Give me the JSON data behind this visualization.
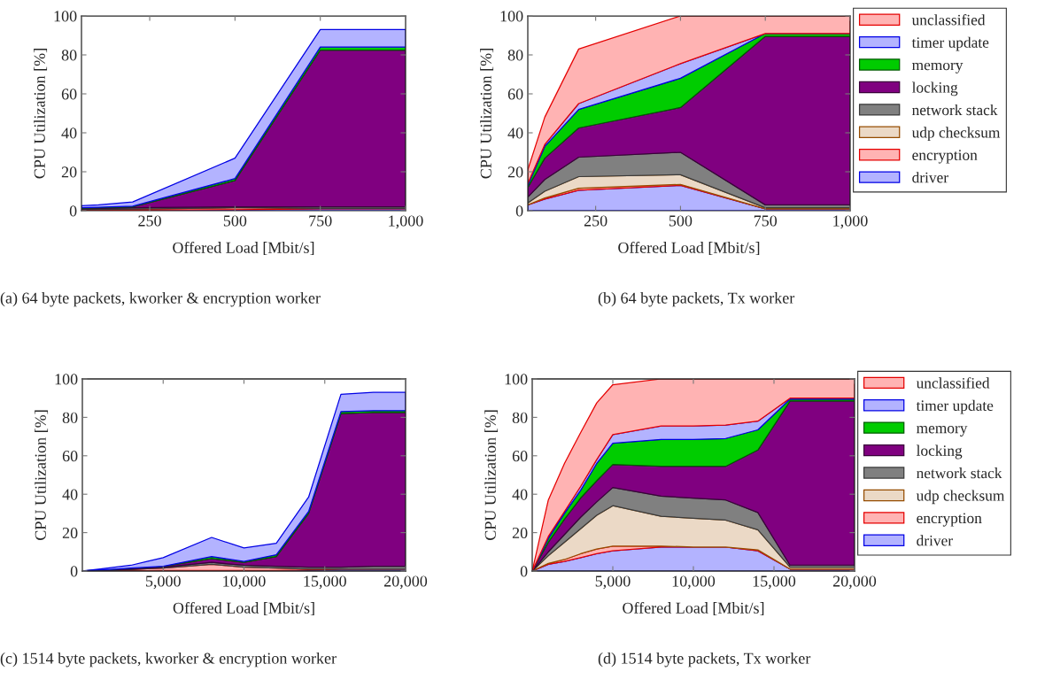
{
  "chart_data": [
    {
      "type": "area",
      "stacked": true,
      "legend": false,
      "xlabel": "Offered Load [Mbit/s]",
      "ylabel": "CPU Utilization [%]",
      "annotations": [
        "(a) 64 byte packets, kworker & encryption worker"
      ],
      "x": [
        50,
        100,
        200,
        500,
        750,
        1000
      ],
      "xlim": [
        50,
        1000
      ],
      "ylim": [
        0,
        100
      ],
      "xticks": [
        250,
        500,
        750,
        {
          "value": 1000,
          "label": "1,000"
        }
      ],
      "yticks": [
        0,
        20,
        40,
        60,
        80,
        100
      ],
      "series": [
        {
          "color": "#b3b3ff",
          "values": [
            0.3,
            0.3,
            0.3,
            0.5,
            1,
            1
          ]
        },
        {
          "color": "#ffb3b3",
          "values": [
            0.2,
            0.3,
            0.5,
            1,
            0.2,
            0.2
          ]
        },
        {
          "color": "#808080",
          "values": [
            0.5,
            0.6,
            0.7,
            0.5,
            0.8,
            0.8
          ]
        },
        {
          "color": "#800080",
          "values": [
            0.3,
            0.3,
            0.5,
            13.5,
            80.5,
            80.5
          ]
        },
        {
          "color": "#00cc00",
          "values": [
            0.2,
            0.3,
            0.3,
            1,
            1.5,
            1.5
          ]
        },
        {
          "color": "#b3b3ff",
          "values": [
            1,
            1.2,
            2.2,
            10.5,
            9,
            9
          ]
        }
      ]
    },
    {
      "type": "area",
      "stacked": true,
      "legend": "right",
      "xlabel": "Offered Load [Mbit/s]",
      "ylabel": "CPU Utilization [%]",
      "annotations": [
        "(b) 64 byte packets, Tx worker"
      ],
      "x": [
        50,
        100,
        200,
        500,
        750,
        1000
      ],
      "xlim": [
        50,
        1000
      ],
      "ylim": [
        0,
        100
      ],
      "xticks": [
        250,
        500,
        750,
        {
          "value": 1000,
          "label": "1,000"
        }
      ],
      "yticks": [
        0,
        20,
        40,
        60,
        80,
        100
      ],
      "series": [
        {
          "name": "driver",
          "color": "#b3b3ff",
          "values": [
            3,
            6,
            10.5,
            13,
            1,
            1
          ]
        },
        {
          "name": "encryption",
          "color": "#ffb3b3",
          "values": [
            0,
            0.5,
            1,
            0.5,
            0,
            0
          ]
        },
        {
          "name": "udp checksum",
          "color": "#ebd9c6",
          "values": [
            1,
            3.5,
            6,
            5,
            0.5,
            0.5
          ]
        },
        {
          "name": "network stack",
          "color": "#808080",
          "values": [
            3,
            6,
            10,
            11.5,
            1.5,
            1.5
          ]
        },
        {
          "name": "locking",
          "color": "#800080",
          "values": [
            5,
            11,
            15,
            23,
            86.5,
            86.5
          ]
        },
        {
          "name": "memory",
          "color": "#00cc00",
          "values": [
            1,
            6,
            9.5,
            15,
            1.5,
            1.5
          ]
        },
        {
          "name": "timer update",
          "color": "#b3b3ff",
          "values": [
            1,
            1,
            3,
            7.5,
            0,
            0
          ]
        },
        {
          "name": "unclassified",
          "color": "#ffb3b3",
          "values": [
            7,
            14,
            28,
            24.5,
            9,
            9
          ]
        }
      ]
    },
    {
      "type": "area",
      "stacked": true,
      "legend": false,
      "xlabel": "Offered Load [Mbit/s]",
      "ylabel": "CPU Utilization [%]",
      "annotations": [
        "(c) 1514 byte packets, kworker & encryption worker"
      ],
      "x": [
        0,
        1000,
        2000,
        3000,
        4000,
        5000,
        8000,
        10000,
        12000,
        14000,
        16000,
        18000,
        20000
      ],
      "xlim": [
        0,
        20000
      ],
      "ylim": [
        0,
        100
      ],
      "xticks": [
        {
          "value": 5000,
          "label": "5,000"
        },
        {
          "value": 10000,
          "label": "10,000"
        },
        {
          "value": 15000,
          "label": "15,000"
        },
        {
          "value": 20000,
          "label": "20,000"
        }
      ],
      "yticks": [
        0,
        20,
        40,
        60,
        80,
        100
      ],
      "series": [
        {
          "color": "#b3b3ff",
          "values": [
            0,
            0.1,
            0.1,
            0.2,
            0.2,
            0.3,
            0.3,
            0.3,
            0.3,
            0.5,
            1,
            1,
            1
          ]
        },
        {
          "color": "#ffb3b3",
          "values": [
            0,
            0.1,
            0.3,
            0.6,
            1,
            1.2,
            3.2,
            1.7,
            1.2,
            0.5,
            0,
            0,
            0
          ]
        },
        {
          "color": "#808080",
          "values": [
            0,
            0.1,
            0.1,
            0.2,
            0.3,
            0.5,
            1,
            1,
            1,
            1,
            1,
            1.5,
            1.5
          ]
        },
        {
          "color": "#800080",
          "values": [
            0,
            0.2,
            0.5,
            0.5,
            0.5,
            0.5,
            2,
            1.5,
            5,
            28,
            80,
            80,
            80
          ]
        },
        {
          "color": "#00cc00",
          "values": [
            0,
            0,
            0,
            0,
            0,
            0,
            1,
            0.5,
            1,
            1,
            1,
            1,
            1
          ]
        },
        {
          "color": "#b3b3ff",
          "values": [
            0,
            0.5,
            1,
            1.5,
            3,
            4.5,
            10,
            7,
            6,
            7.5,
            9,
            9.5,
            9.5
          ]
        }
      ]
    },
    {
      "type": "area",
      "stacked": true,
      "legend": "right",
      "xlabel": "Offered Load [Mbit/s]",
      "ylabel": "CPU Utilization [%]",
      "annotations": [
        "(d) 1514 byte packets, Tx worker"
      ],
      "x": [
        0,
        1000,
        2000,
        3000,
        4000,
        5000,
        8000,
        10000,
        12000,
        14000,
        16000,
        18000,
        20000
      ],
      "xlim": [
        0,
        20000
      ],
      "ylim": [
        0,
        100
      ],
      "xticks": [
        {
          "value": 5000,
          "label": "5,000"
        },
        {
          "value": 10000,
          "label": "10,000"
        },
        {
          "value": 15000,
          "label": "15,000"
        },
        {
          "value": 20000,
          "label": "20,000"
        }
      ],
      "yticks": [
        0,
        20,
        40,
        60,
        80,
        100
      ],
      "series": [
        {
          "name": "driver",
          "color": "#b3b3ff",
          "values": [
            0,
            3.5,
            5,
            7,
            9,
            10.5,
            12.5,
            12.5,
            12.5,
            10.5,
            1,
            1,
            1
          ]
        },
        {
          "name": "encryption",
          "color": "#ffb3b3",
          "values": [
            0,
            0.5,
            1,
            2,
            2.5,
            2.5,
            0.5,
            0,
            0,
            0.5,
            0,
            0,
            0
          ]
        },
        {
          "name": "udp checksum",
          "color": "#ebd9c6",
          "values": [
            0,
            4,
            9,
            13,
            17.5,
            21,
            15.5,
            15,
            14,
            10.5,
            1,
            1,
            1
          ]
        },
        {
          "name": "network stack",
          "color": "#808080",
          "values": [
            0,
            2,
            4,
            6,
            7,
            9.5,
            10.5,
            10.5,
            10.5,
            9,
            1,
            1,
            1
          ]
        },
        {
          "name": "locking",
          "color": "#800080",
          "values": [
            0,
            5,
            8,
            10,
            11,
            12,
            15.5,
            16.5,
            17.5,
            32.5,
            85.5,
            85.5,
            85.5
          ]
        },
        {
          "name": "memory",
          "color": "#00cc00",
          "values": [
            0,
            2,
            3,
            4,
            9,
            11,
            14,
            14,
            14.5,
            10.5,
            1,
            1,
            1
          ]
        },
        {
          "name": "timer update",
          "color": "#b3b3ff",
          "values": [
            0,
            1,
            1,
            2,
            2,
            4.5,
            7,
            7,
            7,
            4.5,
            0.5,
            0.5,
            0.5
          ]
        },
        {
          "name": "unclassified",
          "color": "#ffb3b3",
          "values": [
            0,
            19,
            25,
            28,
            29.5,
            26,
            24.5,
            24.5,
            24,
            22,
            10,
            10,
            10
          ]
        }
      ]
    }
  ]
}
